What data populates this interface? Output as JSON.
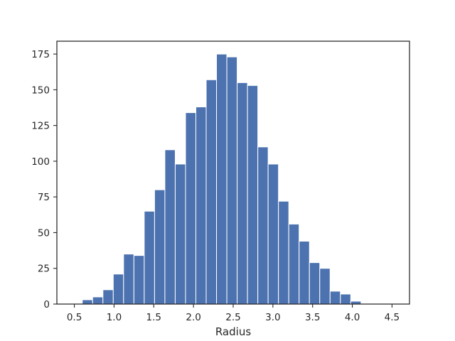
{
  "chart_data": {
    "type": "bar",
    "subtype": "histogram",
    "title": "",
    "xlabel": "Radius",
    "ylabel": "",
    "xlim": [
      0.28,
      4.72
    ],
    "ylim": [
      0,
      184
    ],
    "xticks": [
      0.5,
      1.0,
      1.5,
      2.0,
      2.5,
      3.0,
      3.5,
      4.0,
      4.5
    ],
    "xtick_labels": [
      "0.5",
      "1.0",
      "1.5",
      "2.0",
      "2.5",
      "3.0",
      "3.5",
      "4.0",
      "4.5"
    ],
    "yticks": [
      0,
      25,
      50,
      75,
      100,
      125,
      150,
      175
    ],
    "ytick_labels": [
      "0",
      "25",
      "50",
      "75",
      "100",
      "125",
      "150",
      "175"
    ],
    "bin_edges": [
      0.6,
      0.73,
      0.86,
      0.99,
      1.12,
      1.25,
      1.38,
      1.51,
      1.64,
      1.77,
      1.9,
      2.03,
      2.16,
      2.29,
      2.42,
      2.55,
      2.68,
      2.81,
      2.94,
      3.07,
      3.2,
      3.33,
      3.46,
      3.59,
      3.72,
      3.85,
      3.98,
      4.11
    ],
    "counts": [
      3,
      5,
      10,
      21,
      35,
      34,
      65,
      80,
      108,
      98,
      134,
      138,
      157,
      175,
      173,
      155,
      153,
      110,
      98,
      72,
      56,
      44,
      29,
      25,
      9,
      7,
      2
    ],
    "bar_color": "#4c72b0",
    "edge_color": "#ffffff",
    "grid": false,
    "legend": "none"
  }
}
